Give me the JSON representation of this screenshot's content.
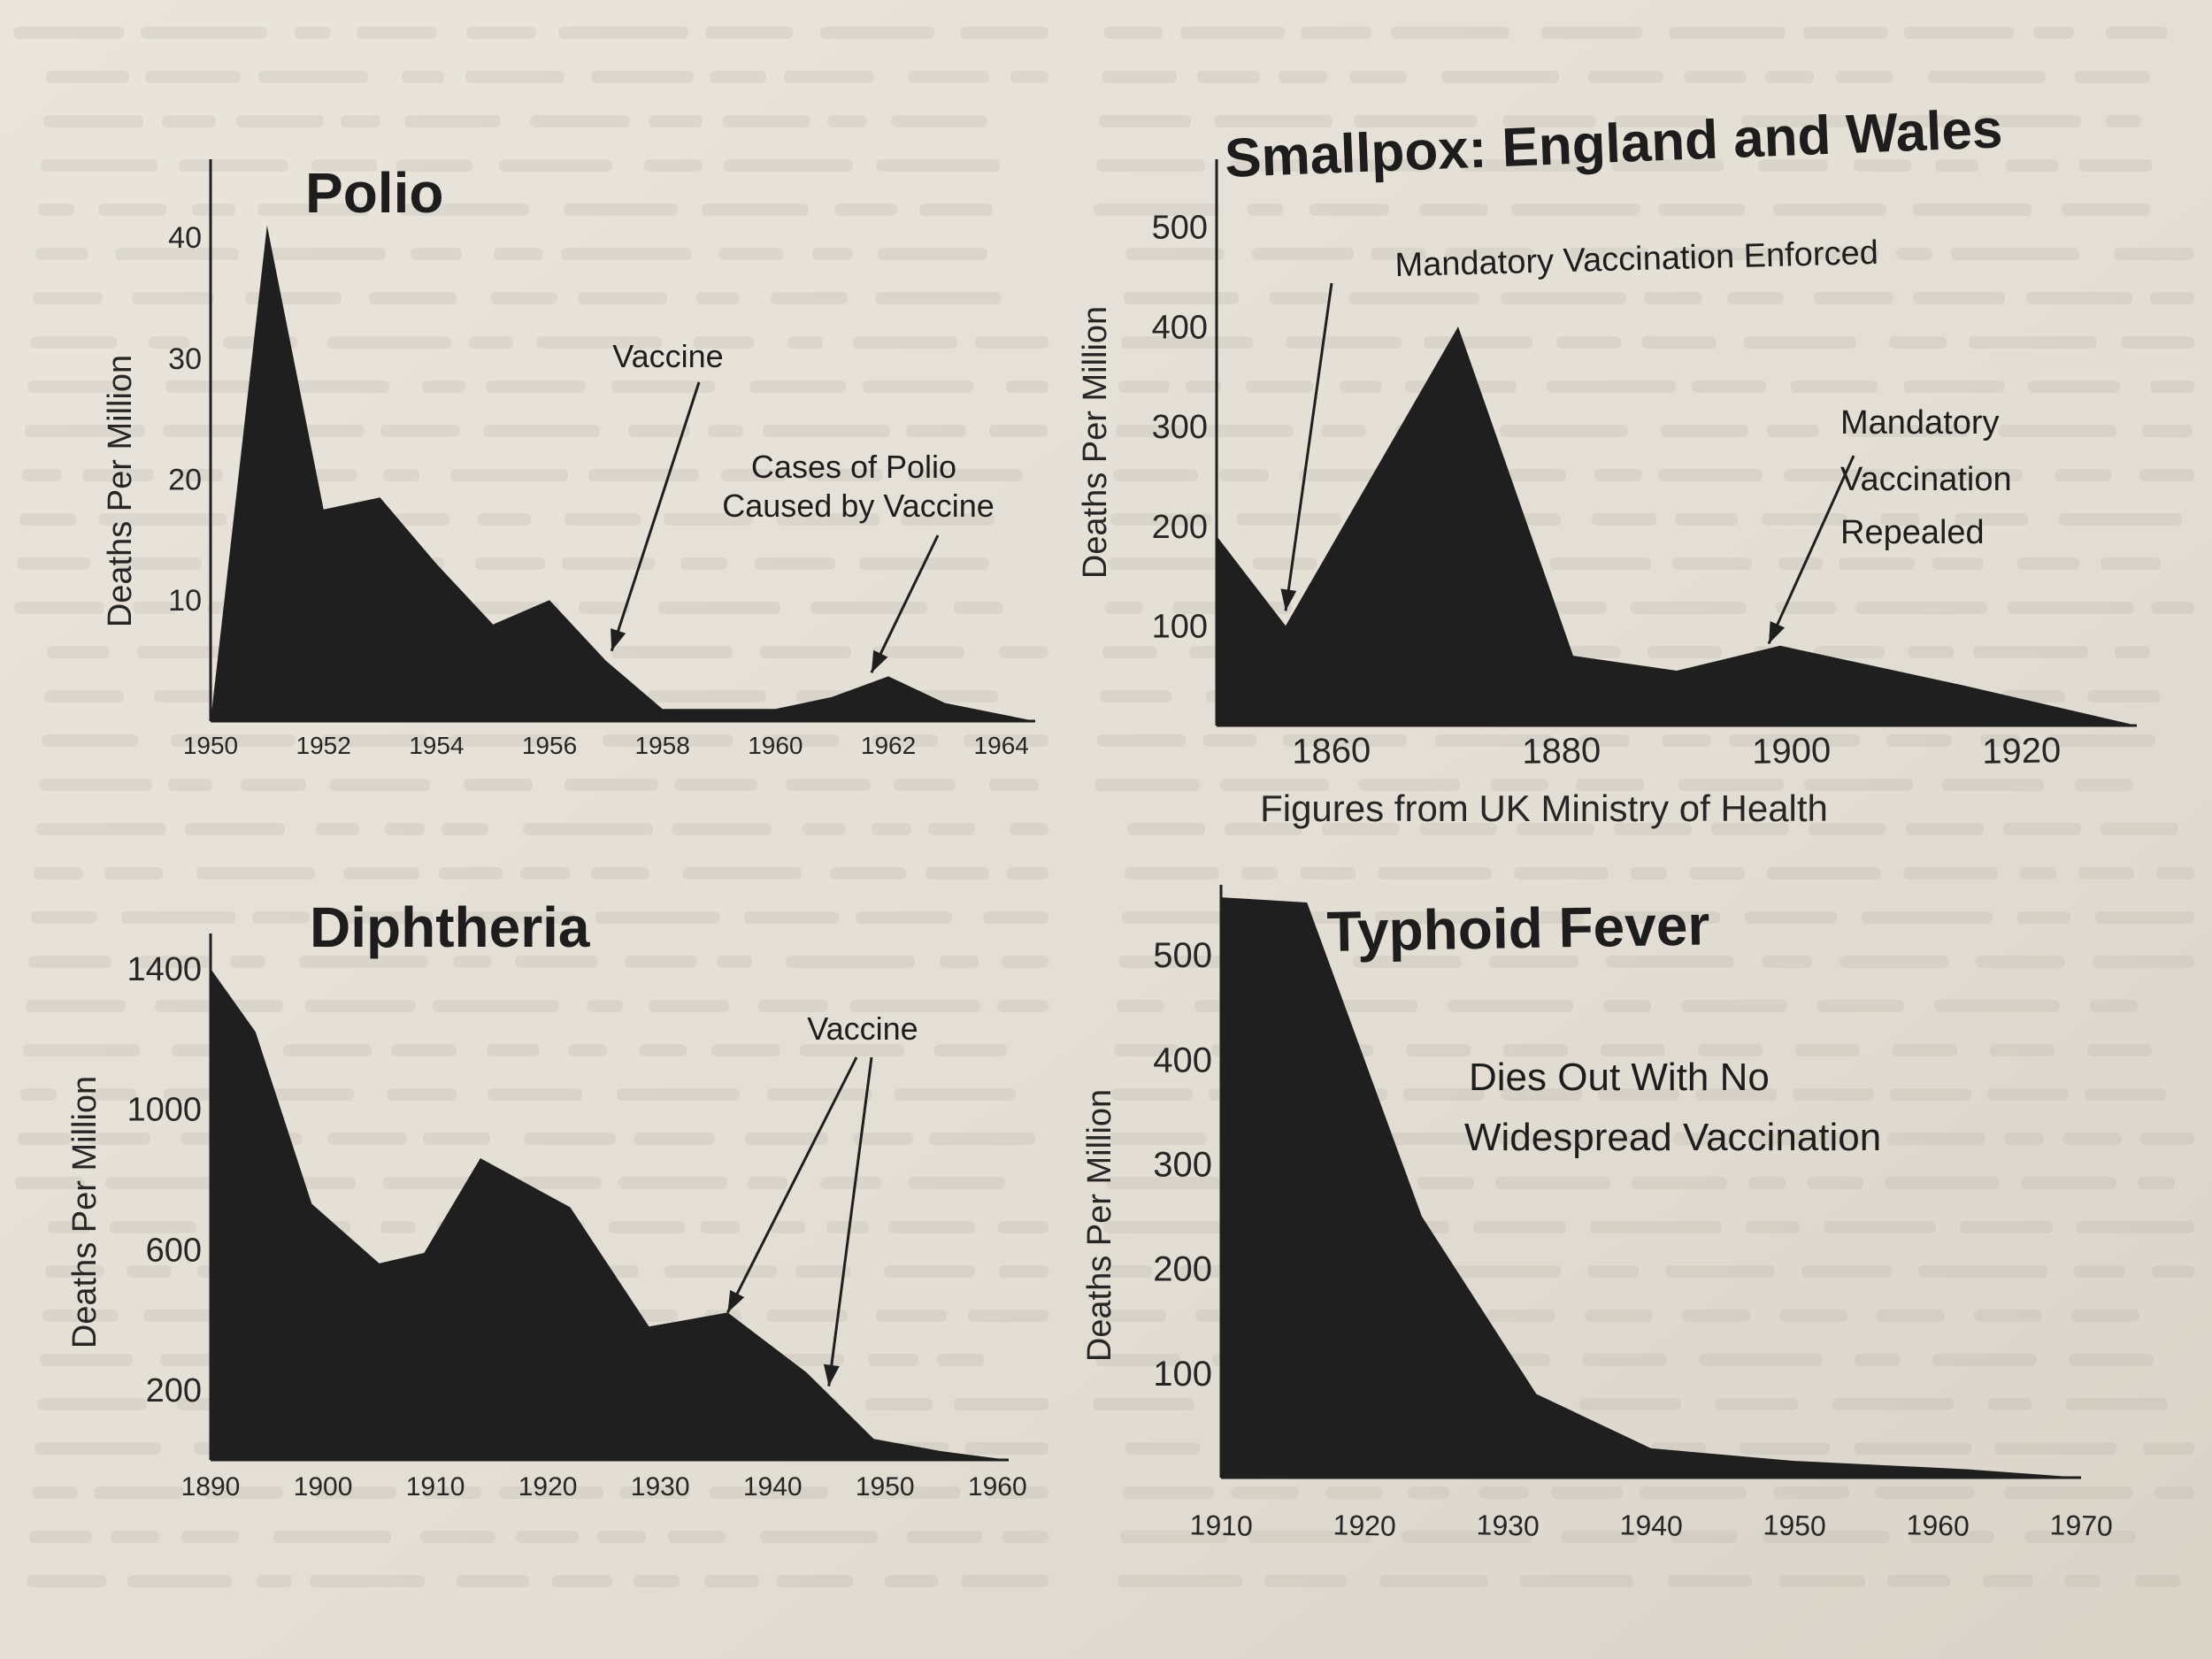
{
  "colors": {
    "paper": "#e4dfd6",
    "ink": "#1f1f1f",
    "ghost_text": "#9f978c"
  },
  "chart_data": [
    {
      "id": "polio",
      "type": "area",
      "title": "Polio",
      "xlabel": "",
      "ylabel": "Deaths Per Million",
      "xlim": [
        1950,
        1964.6
      ],
      "ylim": [
        0,
        45
      ],
      "x_ticks": [
        1950,
        1952,
        1954,
        1956,
        1958,
        1960,
        1962,
        1964
      ],
      "y_ticks": [
        10,
        20,
        30,
        40
      ],
      "grid": false,
      "series": [
        {
          "name": "Polio deaths",
          "x": [
            1950,
            1951,
            1952,
            1953,
            1954,
            1955,
            1956,
            1957,
            1958,
            1959,
            1960,
            1961,
            1962,
            1963,
            1964.6
          ],
          "y": [
            0,
            41,
            17.5,
            18.5,
            13,
            8,
            10,
            5,
            1,
            1,
            1,
            2,
            3.7,
            1.5,
            0
          ]
        }
      ],
      "annotations": [
        {
          "text": "Vaccine",
          "x": 1957.1,
          "y": 5.8
        },
        {
          "text": "Cases of Polio Caused by Vaccine",
          "x": 1961.7,
          "y": 4.0
        }
      ]
    },
    {
      "id": "smallpox",
      "type": "area",
      "title": "Smallpox: England and Wales",
      "xlabel": "Figures from UK Ministry of Health",
      "ylabel": "Deaths Per Million",
      "xlim": [
        1850,
        1930
      ],
      "ylim": [
        0,
        550
      ],
      "x_ticks": [
        1860,
        1880,
        1900,
        1920
      ],
      "y_ticks": [
        100,
        200,
        300,
        400,
        500
      ],
      "grid": false,
      "series": [
        {
          "name": "Smallpox deaths",
          "x": [
            1850,
            1850,
            1856,
            1871,
            1881,
            1890,
            1899,
            1915,
            1930
          ],
          "y": [
            0,
            190,
            100,
            400,
            70,
            55,
            80,
            40,
            0
          ]
        }
      ],
      "annotations": [
        {
          "text": "Mandatory Vaccination Enforced",
          "x": 1856,
          "y": 115
        },
        {
          "text": "Mandatory Vaccination Repealed",
          "x": 1898,
          "y": 82
        }
      ]
    },
    {
      "id": "diphtheria",
      "type": "area",
      "title": "Diphtheria",
      "xlabel": "",
      "ylabel": "Deaths Per Million",
      "xlim": [
        1890,
        1961
      ],
      "ylim": [
        0,
        1450
      ],
      "x_ticks": [
        1890,
        1900,
        1910,
        1920,
        1930,
        1940,
        1950,
        1960
      ],
      "y_ticks": [
        200,
        600,
        1000,
        1400
      ],
      "grid": false,
      "series": [
        {
          "name": "Diphtheria deaths",
          "x": [
            1890,
            1890,
            1894,
            1899,
            1905,
            1909,
            1914,
            1922,
            1929,
            1936,
            1943,
            1949,
            1955,
            1961
          ],
          "y": [
            0,
            1400,
            1220,
            730,
            560,
            590,
            860,
            720,
            380,
            420,
            250,
            60,
            25,
            0
          ]
        }
      ],
      "annotations": [
        {
          "text": "Vaccine",
          "x": 1936,
          "y": 420
        },
        {
          "text": "Vaccine",
          "x": 1945,
          "y": 210
        }
      ]
    },
    {
      "id": "typhoid",
      "type": "area",
      "title": "Typhoid Fever",
      "xlabel": "",
      "ylabel": "Deaths Per Million",
      "xlim": [
        1910,
        1970
      ],
      "ylim": [
        0,
        550
      ],
      "x_ticks": [
        1910,
        1920,
        1930,
        1940,
        1950,
        1960,
        1970
      ],
      "y_ticks": [
        100,
        200,
        300,
        400,
        500
      ],
      "grid": false,
      "series": [
        {
          "name": "Typhoid deaths",
          "x": [
            1910,
            1910,
            1916,
            1924,
            1932,
            1940,
            1950,
            1962,
            1970
          ],
          "y": [
            0,
            555,
            550,
            250,
            80,
            28,
            16,
            8,
            0
          ]
        }
      ],
      "annotations": [
        {
          "text": "Dies Out With No Widespread Vaccination",
          "x": 1941,
          "y": 390
        }
      ]
    }
  ]
}
